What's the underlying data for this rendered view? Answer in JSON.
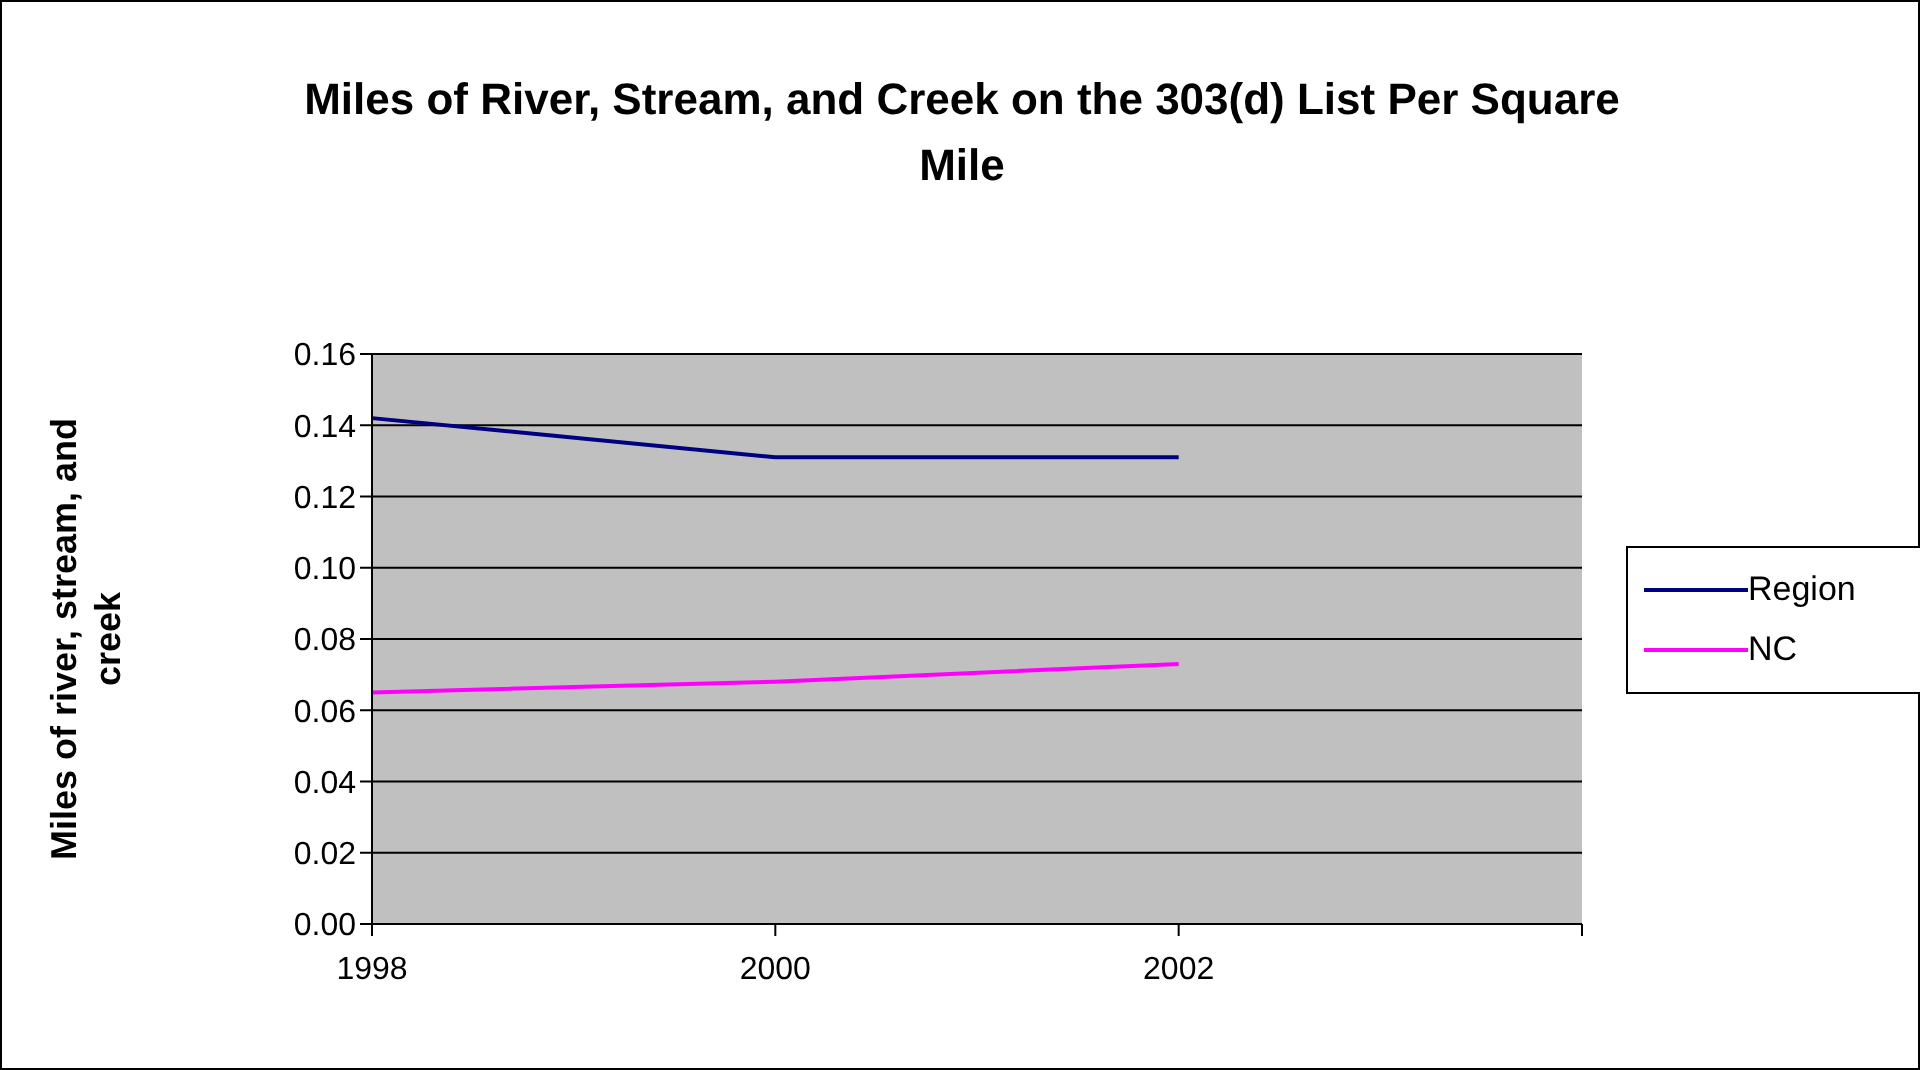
{
  "chart_data": {
    "type": "line",
    "title": "Miles of River, Stream, and Creek on the 303(d) List Per Square Mile",
    "ylabel": "Miles of river, stream, and creek",
    "categories": [
      "1998",
      "2000",
      "2002",
      null
    ],
    "series": [
      {
        "name": "Region",
        "color": "#000080",
        "values": [
          0.142,
          0.131,
          0.131,
          null
        ]
      },
      {
        "name": "NC",
        "color": "#ff00ff",
        "values": [
          0.065,
          0.068,
          0.073,
          null
        ]
      }
    ],
    "ylim": [
      0,
      0.16
    ],
    "yticks": [
      {
        "value": 0,
        "label": "0.00"
      },
      {
        "value": 0.02,
        "label": "0.02"
      },
      {
        "value": 0.04,
        "label": "0.04"
      },
      {
        "value": 0.06,
        "label": "0.06"
      },
      {
        "value": 0.08,
        "label": "0.08"
      },
      {
        "value": 0.1,
        "label": "0.10"
      },
      {
        "value": 0.12,
        "label": "0.12"
      },
      {
        "value": 0.14,
        "label": "0.14"
      },
      {
        "value": 0.16,
        "label": "0.16"
      }
    ],
    "grid": "y",
    "legend": "right",
    "marker": "none",
    "line_style": "solid"
  }
}
